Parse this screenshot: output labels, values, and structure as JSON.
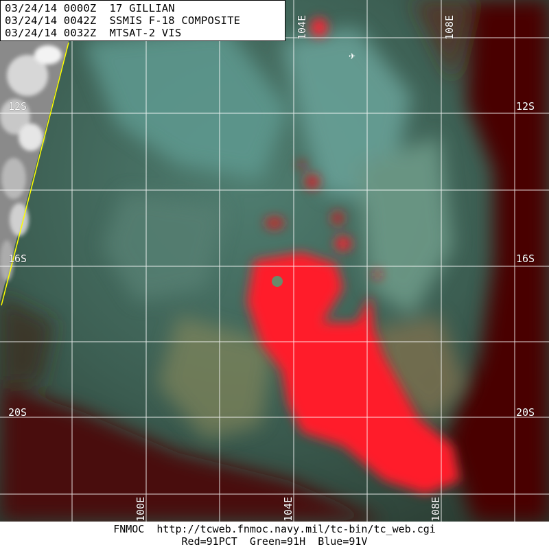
{
  "header": {
    "line1": "03/24/14 0000Z  17 GILLIAN",
    "line2": "03/24/14 0042Z  SSMIS F-18 COMPOSITE",
    "line3": "03/24/14 0032Z  MTSAT-2 VIS"
  },
  "grid": {
    "lat_labels": [
      "12S",
      "12S",
      "16S",
      "16S",
      "20S",
      "20S"
    ],
    "lon_labels_top": [
      "104E",
      "108E"
    ],
    "lon_labels_bottom": [
      "100E",
      "104E",
      "108E"
    ],
    "line_color": "#ffffff",
    "coast_color": "#ffff00"
  },
  "footer": {
    "line1": "FNMOC  http://tcweb.fnmoc.navy.mil/tc-bin/tc_web.cgi",
    "line2": "Red=91PCT  Green=91H  Blue=91V"
  },
  "colors": {
    "convection": "#ff1a2a",
    "background_teal": "#3d6a60",
    "background_maroon": "#4a0606"
  }
}
